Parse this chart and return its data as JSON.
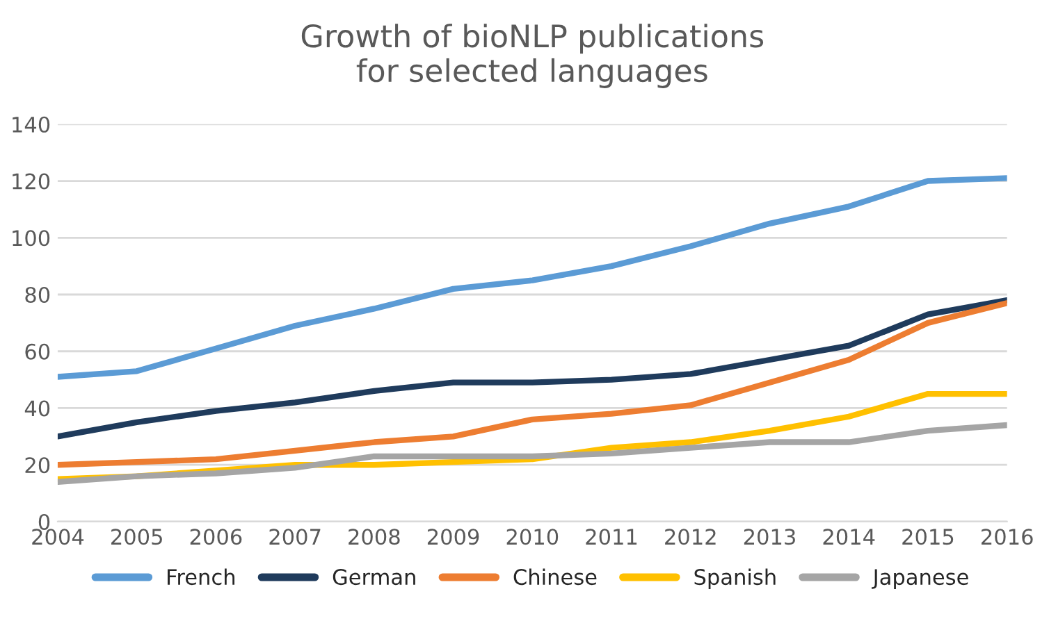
{
  "chart_data": {
    "type": "line",
    "title": "Growth of bioNLP publications\nfor selected languages",
    "categories": [
      "2004",
      "2005",
      "2006",
      "2007",
      "2008",
      "2009",
      "2010",
      "2011",
      "2012",
      "2013",
      "2014",
      "2015",
      "2016"
    ],
    "series": [
      {
        "name": "French",
        "color": "#5b9bd5",
        "values": [
          51,
          53,
          61,
          69,
          75,
          82,
          85,
          90,
          97,
          105,
          111,
          120,
          121
        ]
      },
      {
        "name": "German",
        "color": "#1f3b5c",
        "values": [
          30,
          35,
          39,
          42,
          46,
          49,
          49,
          50,
          52,
          57,
          62,
          73,
          78
        ]
      },
      {
        "name": "Chinese",
        "color": "#ed7d31",
        "values": [
          20,
          21,
          22,
          25,
          28,
          30,
          36,
          38,
          41,
          49,
          57,
          70,
          77
        ]
      },
      {
        "name": "Spanish",
        "color": "#ffc000",
        "values": [
          15,
          16,
          18,
          20,
          20,
          21,
          22,
          26,
          28,
          32,
          37,
          45,
          45
        ]
      },
      {
        "name": "Japanese",
        "color": "#a5a5a5",
        "values": [
          14,
          16,
          17,
          19,
          23,
          23,
          23,
          24,
          26,
          28,
          28,
          32,
          34
        ]
      }
    ],
    "ylim": [
      0,
      140
    ],
    "yticks": [
      0,
      20,
      40,
      60,
      80,
      100,
      120,
      140
    ],
    "grid": "y",
    "legend": "bottom",
    "marker": "none",
    "line_style": "solid"
  }
}
